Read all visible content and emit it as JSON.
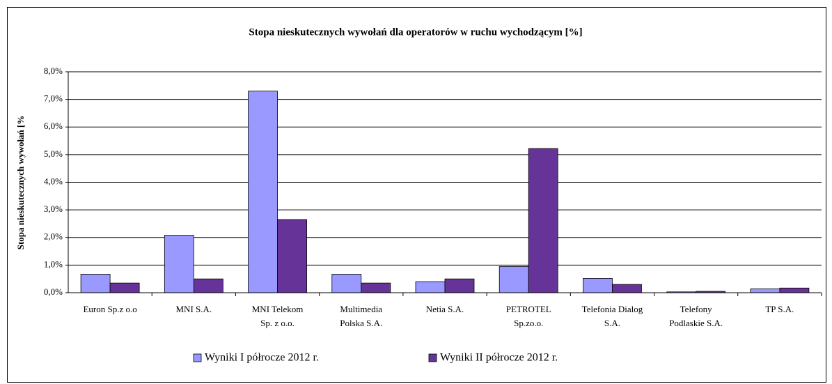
{
  "chart_data": {
    "type": "bar",
    "title": "Stopa nieskutecznych wywołań dla operatorów w ruchu wychodzącym [%]",
    "y_label": "Stopa nieskutecznych wywołań [%",
    "categories": [
      "Euron Sp.z o.o",
      "MNI S.A.",
      "MNI Telekom\nSp. z o.o.",
      "Multimedia\nPolska S.A.",
      "Netia S.A.",
      "PETROTEL\nSp.zo.o.",
      "Telefonia Dialog\nS.A.",
      "Telefony\nPodlaskie S.A.",
      "TP S.A."
    ],
    "series": [
      {
        "name": "Wyniki I półrocze 2012 r.",
        "color": "#9999ff",
        "values": [
          0.67,
          2.08,
          7.3,
          0.67,
          0.4,
          0.95,
          0.52,
          0.03,
          0.14
        ]
      },
      {
        "name": "Wyniki II półrocze 2012 r.",
        "color": "#663399",
        "values": [
          0.35,
          0.5,
          2.65,
          0.35,
          0.5,
          5.22,
          0.3,
          0.05,
          0.17
        ]
      }
    ],
    "ylim": [
      0,
      8
    ],
    "yticks": [
      {
        "value": 0,
        "label": "0,0%"
      },
      {
        "value": 1,
        "label": "1,0%"
      },
      {
        "value": 2,
        "label": "2,0%"
      },
      {
        "value": 3,
        "label": "3,0%"
      },
      {
        "value": 4,
        "label": "4,0%"
      },
      {
        "value": 5,
        "label": "5,0%"
      },
      {
        "value": 6,
        "label": "6,0%"
      },
      {
        "value": 7,
        "label": "7,0%"
      },
      {
        "value": 8,
        "label": "8,0%"
      }
    ],
    "grid": true,
    "legend": "bottom"
  }
}
